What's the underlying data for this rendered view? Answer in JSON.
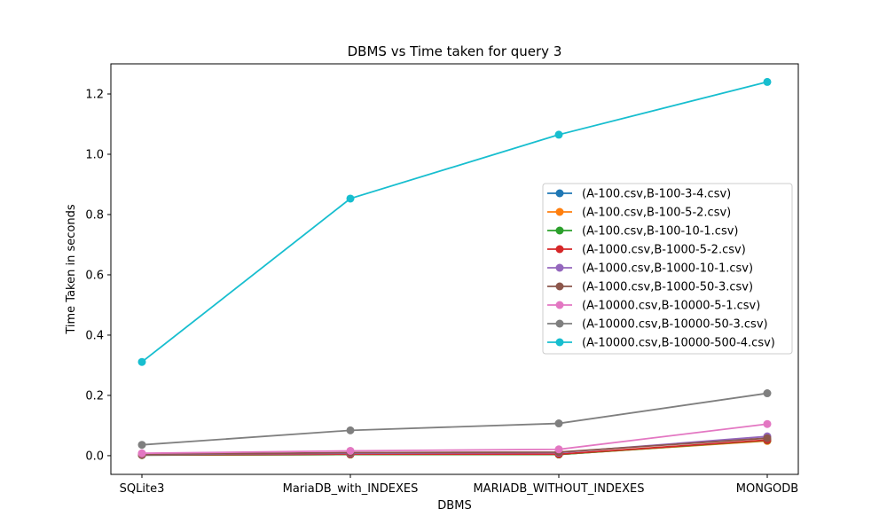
{
  "chart_data": {
    "type": "line",
    "title": "DBMS vs Time taken for query 3",
    "xlabel": "DBMS",
    "ylabel": "Time Taken in seconds",
    "categories": [
      "SQLite3",
      "MariaDB_with_INDEXES",
      "MARIADB_WITHOUT_INDEXES",
      "MONGODB"
    ],
    "ylim": [
      -0.062,
      1.3
    ],
    "yticks": [
      0.0,
      0.2,
      0.4,
      0.6,
      0.8,
      1.0,
      1.2
    ],
    "ytick_labels": [
      "0.0",
      "0.2",
      "0.4",
      "0.6",
      "0.8",
      "1.0",
      "1.2"
    ],
    "grid": false,
    "legend_position": "center-right",
    "series": [
      {
        "name": "(A-100.csv,B-100-3-4.csv)",
        "color": "#1f77b4",
        "values": [
          0.002,
          0.004,
          0.004,
          0.05
        ]
      },
      {
        "name": "(A-100.csv,B-100-5-2.csv)",
        "color": "#ff7f0e",
        "values": [
          0.002,
          0.004,
          0.004,
          0.049
        ]
      },
      {
        "name": "(A-100.csv,B-100-10-1.csv)",
        "color": "#2ca02c",
        "values": [
          0.002,
          0.004,
          0.004,
          0.051
        ]
      },
      {
        "name": "(A-1000.csv,B-1000-5-2.csv)",
        "color": "#d62728",
        "values": [
          0.003,
          0.005,
          0.005,
          0.052
        ]
      },
      {
        "name": "(A-1000.csv,B-1000-10-1.csv)",
        "color": "#9467bd",
        "values": [
          0.004,
          0.008,
          0.01,
          0.064
        ]
      },
      {
        "name": "(A-1000.csv,B-1000-50-3.csv)",
        "color": "#8c564b",
        "values": [
          0.005,
          0.01,
          0.012,
          0.058
        ]
      },
      {
        "name": "(A-10000.csv,B-10000-5-1.csv)",
        "color": "#e377c2",
        "values": [
          0.008,
          0.016,
          0.021,
          0.105
        ]
      },
      {
        "name": "(A-10000.csv,B-10000-50-3.csv)",
        "color": "#7f7f7f",
        "values": [
          0.036,
          0.084,
          0.107,
          0.207
        ]
      },
      {
        "name": "(A-10000.csv,B-10000-500-4.csv)",
        "color": "#17becf",
        "values": [
          0.311,
          0.853,
          1.065,
          1.24
        ]
      }
    ]
  }
}
